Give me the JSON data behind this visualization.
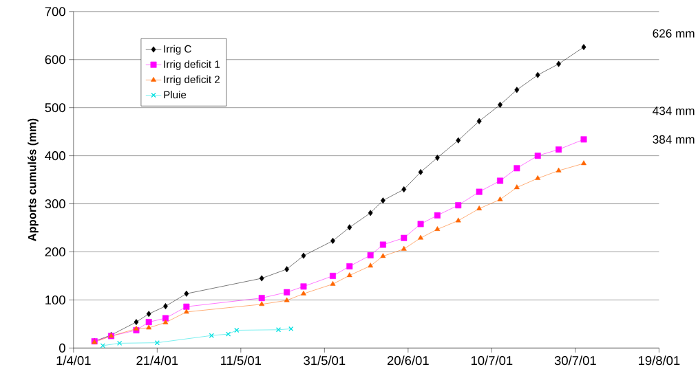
{
  "chart_data": {
    "type": "line",
    "ylabel": "Apports cumulés (mm)",
    "xlim": [
      "2001-04-01",
      "2001-08-19"
    ],
    "xticks": [
      {
        "value": "2001-04-01",
        "label": "1/4/01"
      },
      {
        "value": "2001-04-21",
        "label": "21/4/01"
      },
      {
        "value": "2001-05-11",
        "label": "11/5/01"
      },
      {
        "value": "2001-05-31",
        "label": "31/5/01"
      },
      {
        "value": "2001-06-20",
        "label": "20/6/01"
      },
      {
        "value": "2001-07-10",
        "label": "10/7/01"
      },
      {
        "value": "2001-07-30",
        "label": "30/7/01"
      },
      {
        "value": "2001-08-19",
        "label": "19/8/01"
      }
    ],
    "ylim": [
      0,
      700
    ],
    "yticks": [
      0,
      100,
      200,
      300,
      400,
      500,
      600,
      700
    ],
    "grid": "y",
    "legend": "top left",
    "x": [
      "2001-04-06",
      "2001-04-10",
      "2001-04-16",
      "2001-04-19",
      "2001-04-23",
      "2001-04-28",
      "2001-05-16",
      "2001-05-22",
      "2001-05-26",
      "2001-06-02",
      "2001-06-06",
      "2001-06-11",
      "2001-06-14",
      "2001-06-19",
      "2001-06-23",
      "2001-06-27",
      "2001-07-02",
      "2001-07-07",
      "2001-07-12",
      "2001-07-16",
      "2001-07-21",
      "2001-07-26",
      "2001-08-01"
    ],
    "series": [
      {
        "name": "Irrig C",
        "color": "#000000",
        "marker": "diamond",
        "values": [
          14,
          27,
          54,
          71,
          87,
          113,
          145,
          164,
          192,
          223,
          251,
          281,
          307,
          330,
          366,
          396,
          432,
          472,
          506,
          537,
          568,
          591,
          626
        ]
      },
      {
        "name": "Irrig deficit 1",
        "color": "#ff00ff",
        "marker": "square",
        "values": [
          14,
          25,
          37,
          54,
          62,
          86,
          104,
          116,
          128,
          150,
          170,
          193,
          215,
          229,
          258,
          276,
          297,
          325,
          348,
          374,
          400,
          413,
          434
        ]
      },
      {
        "name": "Irrig deficit 2",
        "color": "#ff6600",
        "marker": "triangle",
        "values": [
          12,
          25,
          40,
          42,
          53,
          75,
          91,
          99,
          113,
          133,
          151,
          171,
          191,
          206,
          229,
          247,
          265,
          290,
          309,
          334,
          353,
          369,
          384
        ]
      },
      {
        "name": "Pluie",
        "color": "#00e0e0",
        "marker": "cross",
        "x": [
          "2001-04-08",
          "2001-04-12",
          "2001-04-21",
          "2001-05-04",
          "2001-05-08",
          "2001-05-10",
          "2001-05-20",
          "2001-05-23"
        ],
        "values": [
          5,
          10,
          11,
          26,
          29,
          37,
          38,
          40
        ]
      }
    ],
    "annotations": [
      "626 mm",
      "434 mm",
      "384 mm"
    ]
  }
}
